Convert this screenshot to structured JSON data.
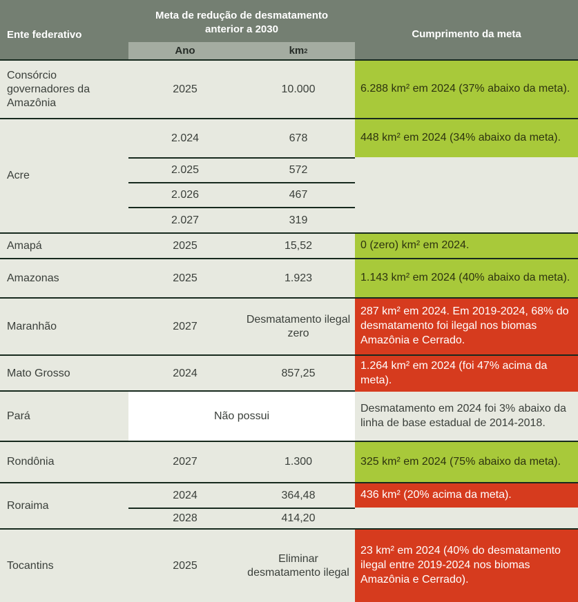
{
  "colors": {
    "header_bg": "#747f72",
    "subheader_bg": "#a4aca1",
    "body_bg": "#e7e9e0",
    "target_met_green": "#a8c93a",
    "target_missed_red": "#d63b1e",
    "divider_dark": "#16291d",
    "no_target_white": "#ffffff"
  },
  "chart_data": {
    "type": "table",
    "title": "Meta de redução de desmatamento anterior a 2030 por ente federativo",
    "header": {
      "entity": "Ente federativo",
      "meta_group": "Meta de redução de desmatamento anterior a 2030",
      "ano": "Ano",
      "km_base": "km",
      "km_sup": "2",
      "cumprimento": "Cumprimento da meta"
    },
    "rows": [
      {
        "entity": "Consórcio governadores da Amazônia",
        "subrows": [
          {
            "ano": "2025",
            "km": "10.000"
          }
        ],
        "compliance": "6.288 km² em 2024 (37% abaixo da meta).",
        "compliance_status": "green"
      },
      {
        "entity": "Acre",
        "subrows": [
          {
            "ano": "2.024",
            "km": "678"
          },
          {
            "ano": "2.025",
            "km": "572"
          },
          {
            "ano": "2.026",
            "km": "467"
          },
          {
            "ano": "2.027",
            "km": "319"
          }
        ],
        "compliance": "448 km² em 2024 (34% abaixo da meta).",
        "compliance_status": "green"
      },
      {
        "entity": "Amapá",
        "subrows": [
          {
            "ano": "2025",
            "km": "15,52"
          }
        ],
        "compliance": "0 (zero) km² em 2024.",
        "compliance_status": "green"
      },
      {
        "entity": "Amazonas",
        "subrows": [
          {
            "ano": "2025",
            "km": "1.923"
          }
        ],
        "compliance": "1.143 km² em 2024 (40% abaixo da meta).",
        "compliance_status": "green"
      },
      {
        "entity": "Maranhão",
        "subrows": [
          {
            "ano": "2027",
            "km": "Desmatamento ilegal zero"
          }
        ],
        "compliance": "287 km² em 2024. Em 2019-2024, 68% do desmatamento foi ilegal nos biomas Amazônia e Cerrado.",
        "compliance_status": "red"
      },
      {
        "entity": "Mato Grosso",
        "subrows": [
          {
            "ano": "2024",
            "km": "857,25"
          }
        ],
        "compliance": "1.264 km² em 2024 (foi 47% acima da meta).",
        "compliance_status": "red"
      },
      {
        "entity": "Pará",
        "merged": "Não possui",
        "subrows": [],
        "compliance": "Desmatamento em 2024 foi 3% abaixo da linha de base estadual de 2014-2018.",
        "compliance_status": "plain"
      },
      {
        "entity": "Rondônia",
        "subrows": [
          {
            "ano": "2027",
            "km": "1.300"
          }
        ],
        "compliance": "325 km² em 2024 (75% abaixo da meta).",
        "compliance_status": "green"
      },
      {
        "entity": "Roraima",
        "subrows": [
          {
            "ano": "2024",
            "km": "364,48"
          },
          {
            "ano": "2028",
            "km": "414,20"
          }
        ],
        "compliance": "436 km² (20% acima da meta).",
        "compliance_status": "red"
      },
      {
        "entity": "Tocantins",
        "subrows": [
          {
            "ano": "2025",
            "km": "Eliminar desmatamento ilegal"
          }
        ],
        "compliance": "23 km² em 2024 (40% do desmatamento ilegal entre 2019-2024 nos biomas Amazônia e Cerrado).",
        "compliance_status": "red"
      }
    ]
  }
}
